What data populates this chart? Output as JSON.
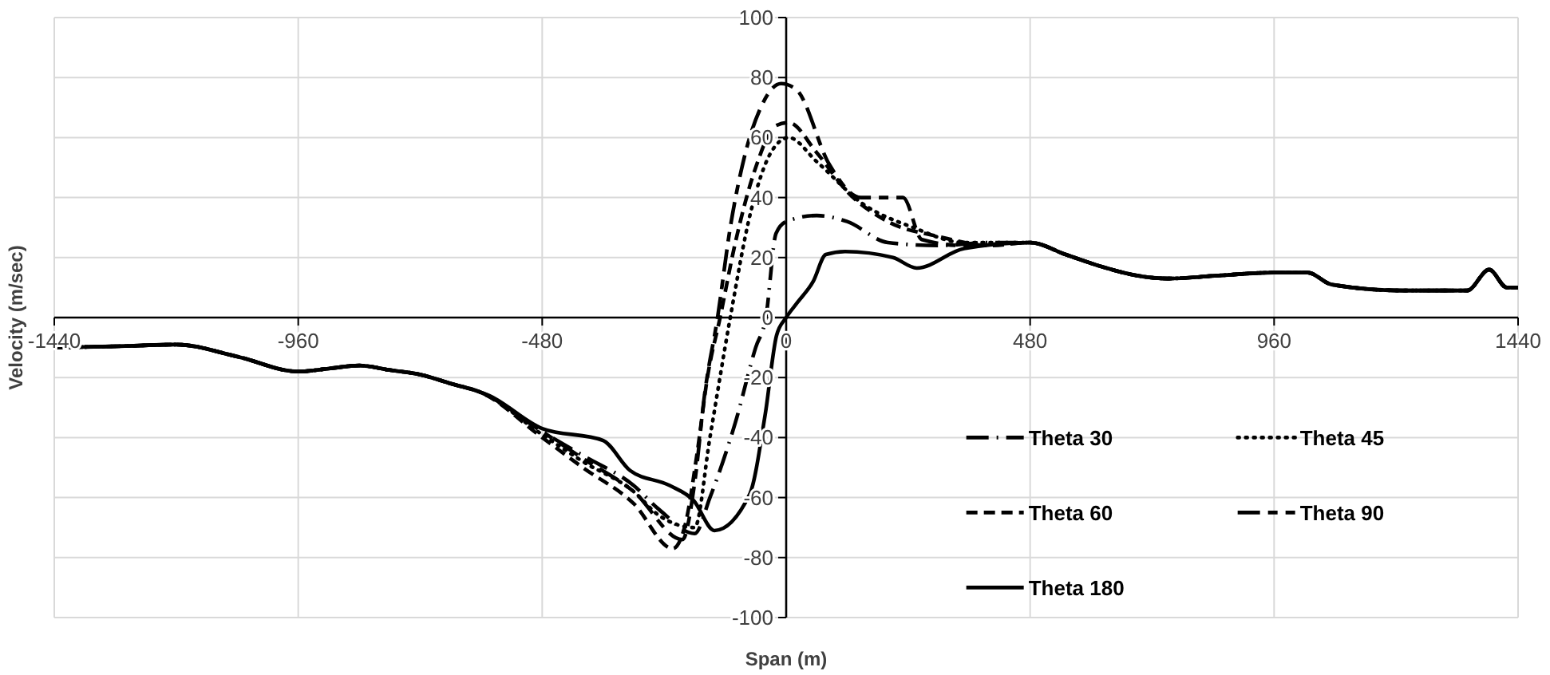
{
  "chart_data": {
    "type": "line",
    "xlabel": "Span (m)",
    "ylabel": "Velocity (m/sec)",
    "xlim": [
      -1440,
      1440
    ],
    "xticks": [
      -1440,
      -960,
      -480,
      0,
      480,
      960,
      1440
    ],
    "ylim": [
      -100,
      100
    ],
    "yticks": [
      -100,
      -80,
      -60,
      -40,
      -20,
      0,
      20,
      40,
      60,
      80,
      100
    ],
    "grid": true,
    "legend": "bottom right",
    "marker": "none",
    "series": [
      {
        "name": "Theta 30",
        "color": "#000000",
        "line_style": "dashdot",
        "x": [
          -1440,
          -1300,
          -1200,
          -1080,
          -960,
          -900,
          -840,
          -780,
          -720,
          -660,
          -600,
          -480,
          -400,
          -300,
          -250,
          -180,
          -150,
          -100,
          -60,
          -40,
          -20,
          0,
          60,
          120,
          200,
          300,
          400,
          480,
          550,
          620,
          690,
          750,
          850,
          960,
          1026,
          1073,
          1214,
          1340,
          1383,
          1418,
          1440
        ],
        "values": [
          -10,
          -9.5,
          -9,
          -13,
          -18,
          -17,
          -16,
          -17.5,
          -19,
          -22,
          -25,
          -38,
          -46,
          -56,
          -64,
          -72,
          -60,
          -35,
          -10,
          0,
          28,
          32,
          34,
          32,
          25,
          24,
          25,
          25,
          21,
          17,
          14,
          13,
          14,
          15,
          15,
          11,
          9,
          9,
          16,
          10,
          10
        ]
      },
      {
        "name": "Theta 45",
        "color": "#000000",
        "line_style": "dotted",
        "x": [
          -1440,
          -1300,
          -1200,
          -1080,
          -960,
          -900,
          -840,
          -780,
          -720,
          -660,
          -600,
          -480,
          -400,
          -300,
          -250,
          -180,
          -150,
          -110,
          -70,
          -30,
          5,
          60,
          150,
          250,
          350,
          480,
          550,
          620,
          690,
          750,
          850,
          960,
          1026,
          1073,
          1214,
          1340,
          1383,
          1418,
          1440
        ],
        "values": [
          -10,
          -9.5,
          -9,
          -13,
          -18,
          -17,
          -16,
          -17.5,
          -19,
          -22,
          -25,
          -39,
          -48,
          -58,
          -66,
          -70,
          -40,
          0,
          35,
          55,
          60,
          52,
          38,
          30,
          25,
          25,
          21,
          17,
          14,
          13,
          14,
          15,
          15,
          11,
          9,
          9,
          16,
          10,
          10
        ]
      },
      {
        "name": "Theta 60",
        "color": "#000000",
        "line_style": "dashed",
        "x": [
          -1440,
          -1300,
          -1200,
          -1080,
          -960,
          -900,
          -840,
          -780,
          -720,
          -660,
          -600,
          -480,
          -400,
          -300,
          -223,
          -200,
          -175,
          -155,
          -130,
          -100,
          -60,
          -20,
          5,
          60,
          120,
          200,
          300,
          400,
          480,
          550,
          620,
          690,
          750,
          850,
          960,
          1026,
          1073,
          1214,
          1340,
          1383,
          1418,
          1440
        ],
        "values": [
          -10,
          -9.5,
          -9,
          -13,
          -18,
          -17,
          -16,
          -17.5,
          -19,
          -22,
          -25,
          -40,
          -50,
          -62,
          -77,
          -70,
          -45,
          -20,
          0,
          25,
          50,
          64,
          65,
          55,
          42,
          32,
          27,
          24,
          25,
          21,
          17,
          14,
          13,
          14,
          15,
          15,
          11,
          9,
          9,
          16,
          10,
          10
        ]
      },
      {
        "name": "Theta 90",
        "color": "#000000",
        "line_style": "longdash",
        "x": [
          -1440,
          -1300,
          -1200,
          -1080,
          -960,
          -900,
          -840,
          -780,
          -720,
          -660,
          -600,
          -480,
          -400,
          -300,
          -204,
          -180,
          -160,
          -135,
          -110,
          -80,
          -50,
          -10,
          20,
          85,
          147,
          230,
          267,
          350,
          480,
          550,
          620,
          690,
          750,
          850,
          960,
          1026,
          1073,
          1214,
          1340,
          1383,
          1418,
          1440
        ],
        "values": [
          -10,
          -9.5,
          -9,
          -13,
          -18,
          -17,
          -16,
          -17.5,
          -19,
          -22,
          -25,
          -38,
          -47,
          -58,
          -74,
          -55,
          -25,
          0,
          30,
          55,
          70,
          78,
          76,
          51,
          40,
          40,
          26,
          24,
          25,
          21,
          17,
          14,
          13,
          14,
          15,
          15,
          11,
          9,
          9,
          16,
          10,
          10
        ]
      },
      {
        "name": "Theta 180",
        "color": "#000000",
        "line_style": "solid",
        "x": [
          -1440,
          -1300,
          -1200,
          -1080,
          -960,
          -900,
          -840,
          -780,
          -720,
          -660,
          -584,
          -480,
          -360,
          -307,
          -229,
          -182,
          -141,
          -72,
          -41,
          -19,
          0,
          22,
          53,
          78,
          116,
          210,
          257,
          350,
          480,
          550,
          620,
          690,
          750,
          850,
          960,
          1026,
          1073,
          1214,
          1340,
          1383,
          1418,
          1440
        ],
        "values": [
          -10,
          -9.5,
          -9,
          -13,
          -18,
          -17,
          -16,
          -17.5,
          -19,
          -22,
          -26,
          -37,
          -41,
          -51,
          -56,
          -61,
          -71,
          -59,
          -32,
          -6,
          0,
          5,
          12,
          21,
          22,
          20,
          16.5,
          23,
          25,
          21,
          17,
          14,
          13,
          14,
          15,
          15,
          11,
          9,
          9,
          16,
          10,
          10
        ]
      }
    ]
  }
}
